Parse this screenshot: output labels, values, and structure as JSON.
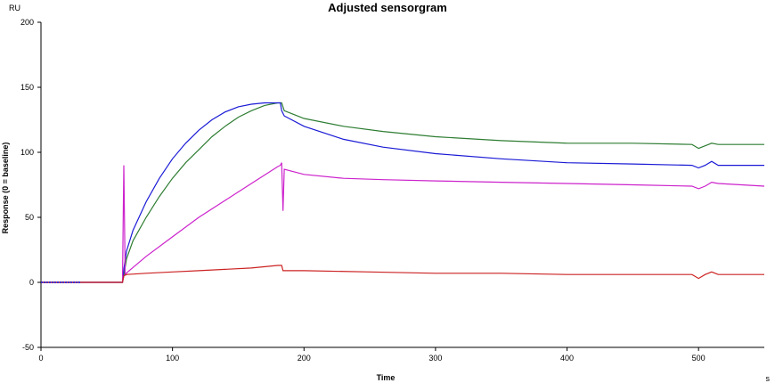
{
  "chart_data": {
    "type": "line",
    "title": "Adjusted sensorgram",
    "xlabel": "Time",
    "ylabel": "Response (0 = baseline)",
    "x_unit": "s",
    "y_unit": "RU",
    "xlim": [
      0,
      550
    ],
    "ylim": [
      -50,
      200
    ],
    "x_ticks": [
      0,
      100,
      200,
      300,
      400,
      500
    ],
    "y_ticks": [
      -50,
      0,
      50,
      100,
      150,
      200
    ],
    "grid": false,
    "series": [
      {
        "color": "#2e7d32",
        "points": [
          [
            0,
            0
          ],
          [
            62,
            0
          ],
          [
            63,
            5
          ],
          [
            65,
            18
          ],
          [
            70,
            32
          ],
          [
            80,
            50
          ],
          [
            90,
            66
          ],
          [
            100,
            80
          ],
          [
            110,
            92
          ],
          [
            120,
            102
          ],
          [
            130,
            112
          ],
          [
            140,
            120
          ],
          [
            150,
            127
          ],
          [
            160,
            132
          ],
          [
            170,
            136
          ],
          [
            180,
            138
          ],
          [
            183,
            138
          ],
          [
            185,
            132
          ],
          [
            200,
            126
          ],
          [
            230,
            120
          ],
          [
            260,
            116
          ],
          [
            300,
            112
          ],
          [
            350,
            109
          ],
          [
            400,
            107
          ],
          [
            450,
            107
          ],
          [
            495,
            106
          ],
          [
            500,
            103
          ],
          [
            505,
            105
          ],
          [
            510,
            107
          ],
          [
            515,
            106
          ],
          [
            550,
            106
          ]
        ]
      },
      {
        "color": "#1a1ad6",
        "points": [
          [
            0,
            0
          ],
          [
            62,
            0
          ],
          [
            63,
            10
          ],
          [
            65,
            24
          ],
          [
            70,
            40
          ],
          [
            80,
            62
          ],
          [
            90,
            80
          ],
          [
            100,
            95
          ],
          [
            110,
            107
          ],
          [
            120,
            117
          ],
          [
            130,
            125
          ],
          [
            140,
            131
          ],
          [
            150,
            135
          ],
          [
            160,
            137
          ],
          [
            170,
            138
          ],
          [
            182,
            138
          ],
          [
            183,
            132
          ],
          [
            185,
            128
          ],
          [
            200,
            120
          ],
          [
            230,
            110
          ],
          [
            260,
            104
          ],
          [
            300,
            99
          ],
          [
            350,
            95
          ],
          [
            400,
            92
          ],
          [
            450,
            91
          ],
          [
            495,
            90
          ],
          [
            500,
            88
          ],
          [
            505,
            90
          ],
          [
            510,
            93
          ],
          [
            515,
            90
          ],
          [
            550,
            90
          ]
        ]
      },
      {
        "color": "#cc22cc",
        "points": [
          [
            0,
            0
          ],
          [
            62,
            0
          ],
          [
            63,
            90
          ],
          [
            64,
            6
          ],
          [
            66,
            8
          ],
          [
            80,
            20
          ],
          [
            100,
            35
          ],
          [
            120,
            50
          ],
          [
            140,
            63
          ],
          [
            160,
            76
          ],
          [
            180,
            89
          ],
          [
            182,
            90
          ],
          [
            183,
            92
          ],
          [
            184,
            55
          ],
          [
            185,
            87
          ],
          [
            200,
            83
          ],
          [
            230,
            80
          ],
          [
            260,
            79
          ],
          [
            300,
            78
          ],
          [
            350,
            77
          ],
          [
            400,
            76
          ],
          [
            450,
            75
          ],
          [
            495,
            74
          ],
          [
            500,
            72
          ],
          [
            505,
            74
          ],
          [
            510,
            77
          ],
          [
            515,
            76
          ],
          [
            550,
            74
          ]
        ]
      },
      {
        "color": "#cc2222",
        "points": [
          [
            0,
            0
          ],
          [
            62,
            0
          ],
          [
            63,
            5
          ],
          [
            65,
            6
          ],
          [
            80,
            7
          ],
          [
            100,
            8
          ],
          [
            120,
            9
          ],
          [
            140,
            10
          ],
          [
            160,
            11
          ],
          [
            180,
            13
          ],
          [
            183,
            13
          ],
          [
            184,
            9
          ],
          [
            200,
            9
          ],
          [
            250,
            8
          ],
          [
            300,
            7
          ],
          [
            350,
            7
          ],
          [
            400,
            6
          ],
          [
            450,
            6
          ],
          [
            495,
            6
          ],
          [
            500,
            3
          ],
          [
            505,
            6
          ],
          [
            510,
            8
          ],
          [
            515,
            6
          ],
          [
            550,
            6
          ]
        ]
      }
    ],
    "baseline_noise": {
      "color": "#1a1ad6",
      "x_range": [
        0,
        30
      ],
      "y": 0
    }
  }
}
